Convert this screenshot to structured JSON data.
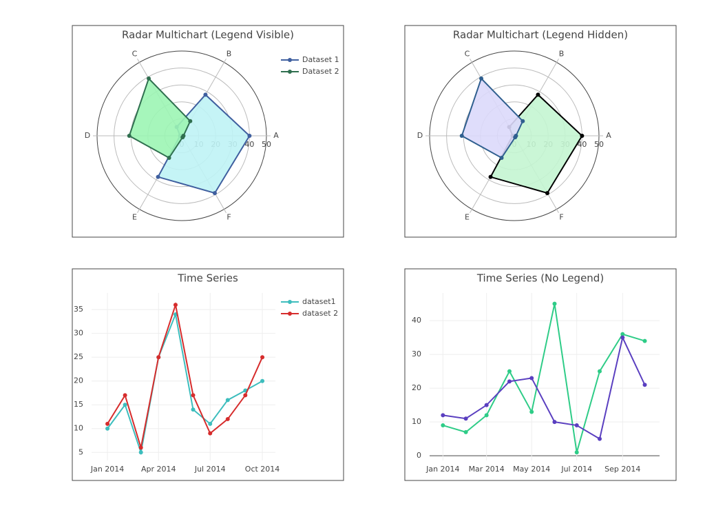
{
  "chart_data": [
    {
      "type": "radar",
      "title": "Radar Multichart (Legend Visible)",
      "legend": true,
      "categories": [
        "A",
        "B",
        "C",
        "D",
        "E",
        "F"
      ],
      "rlim": [
        0,
        50
      ],
      "rticks": [
        0,
        10,
        20,
        30,
        40,
        50
      ],
      "series": [
        {
          "name": "Dataset 1",
          "color": "#3f5f9f",
          "fill": "#bff3f5",
          "values": [
            40,
            28,
            6,
            1,
            28,
            39
          ]
        },
        {
          "name": "Dataset 2",
          "color": "#2f6f4f",
          "fill": "#9cf5b4",
          "values": [
            1,
            10,
            39,
            31,
            15,
            1
          ]
        }
      ]
    },
    {
      "type": "radar",
      "title": "Radar Multichart (Legend Hidden)",
      "legend": false,
      "categories": [
        "A",
        "B",
        "C",
        "D",
        "E",
        "F"
      ],
      "rlim": [
        0,
        50
      ],
      "rticks": [
        0,
        10,
        20,
        30,
        40,
        50
      ],
      "series": [
        {
          "color": "#000000",
          "fill": "#c4f5d2",
          "values": [
            40,
            28,
            6,
            1,
            28,
            39
          ]
        },
        {
          "color": "#2f5f8f",
          "fill": "#dcd9fb",
          "values": [
            1,
            10,
            39,
            31,
            15,
            1
          ]
        }
      ]
    },
    {
      "type": "line",
      "title": "Time Series",
      "legend": true,
      "grid": true,
      "x": [
        "2014-01",
        "2014-02",
        "2014-03",
        "2014-04",
        "2014-05",
        "2014-06",
        "2014-07",
        "2014-08",
        "2014-09",
        "2014-10"
      ],
      "xlim": [
        "2013-12-04",
        "2014-10-24"
      ],
      "xticks": [
        {
          "value": "2014-01",
          "label": "Jan 2014"
        },
        {
          "value": "2014-04",
          "label": "Apr 2014"
        },
        {
          "value": "2014-07",
          "label": "Jul 2014"
        },
        {
          "value": "2014-10",
          "label": "Oct 2014"
        }
      ],
      "ylim": [
        3.3,
        38.5
      ],
      "yticks": [
        5,
        10,
        15,
        20,
        25,
        30,
        35
      ],
      "series": [
        {
          "name": "dataset1",
          "color": "#3dbdbd",
          "values": [
            10,
            15,
            5,
            25,
            34,
            14,
            11,
            16,
            18,
            20
          ]
        },
        {
          "name": "dataset 2",
          "color": "#d62c2c",
          "values": [
            11,
            17,
            6,
            25,
            36,
            17,
            9,
            12,
            17,
            25
          ]
        }
      ]
    },
    {
      "type": "line",
      "title": "Time Series (No Legend)",
      "legend": false,
      "grid": true,
      "x": [
        "2014-01",
        "2014-02",
        "2014-03",
        "2014-04",
        "2014-05",
        "2014-06",
        "2014-07",
        "2014-08",
        "2014-09",
        "2014-10"
      ],
      "xlim": [
        "2013-12-14",
        "2014-10-21"
      ],
      "xticks": [
        {
          "value": "2014-01",
          "label": "Jan 2014"
        },
        {
          "value": "2014-03",
          "label": "Mar 2014"
        },
        {
          "value": "2014-05",
          "label": "May 2014"
        },
        {
          "value": "2014-07",
          "label": "Jul 2014"
        },
        {
          "value": "2014-09",
          "label": "Sep 2014"
        }
      ],
      "ylim": [
        -1.4,
        48.2
      ],
      "yticks": [
        0,
        10,
        20,
        30,
        40
      ],
      "series": [
        {
          "color": "#2ecc87",
          "values": [
            9,
            7,
            12,
            25,
            13,
            45,
            1,
            25,
            36,
            34
          ]
        },
        {
          "color": "#5a3fc0",
          "values": [
            12,
            11,
            15,
            22,
            23,
            10,
            9,
            5,
            35,
            21
          ]
        }
      ]
    }
  ]
}
